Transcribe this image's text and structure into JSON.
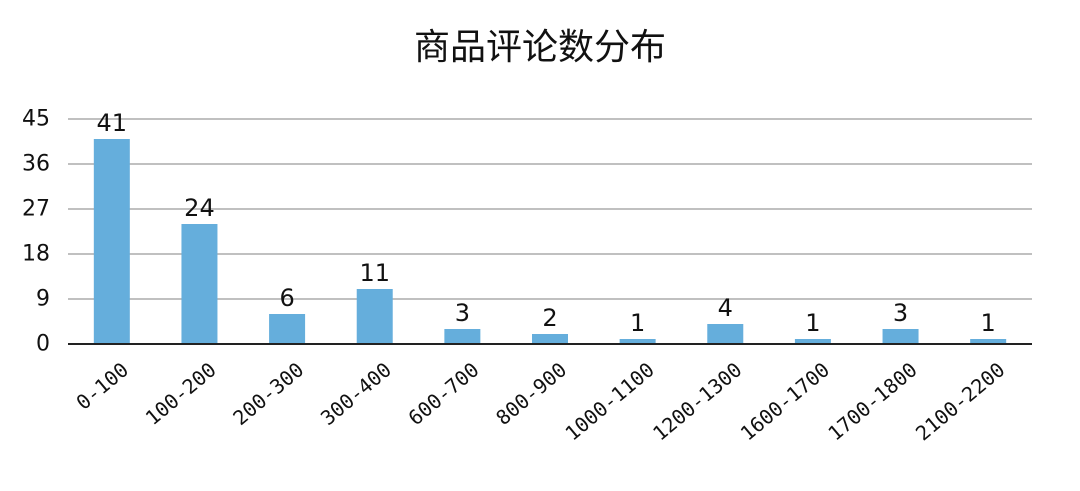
{
  "chart_data": {
    "type": "bar",
    "title": "商品评论数分布",
    "categories": [
      "0-100",
      "100-200",
      "200-300",
      "300-400",
      "600-700",
      "800-900",
      "1000-1100",
      "1200-1300",
      "1600-1700",
      "1700-1800",
      "2100-2200"
    ],
    "values": [
      41,
      24,
      6,
      11,
      3,
      2,
      1,
      4,
      1,
      3,
      1
    ],
    "ylim": [
      0,
      45
    ],
    "yticks": [
      0,
      9,
      18,
      27,
      36,
      45
    ],
    "grid": true,
    "bar_color": "#65aedc",
    "grid_color": "#c0c0c0",
    "axis_color": "#222222"
  }
}
